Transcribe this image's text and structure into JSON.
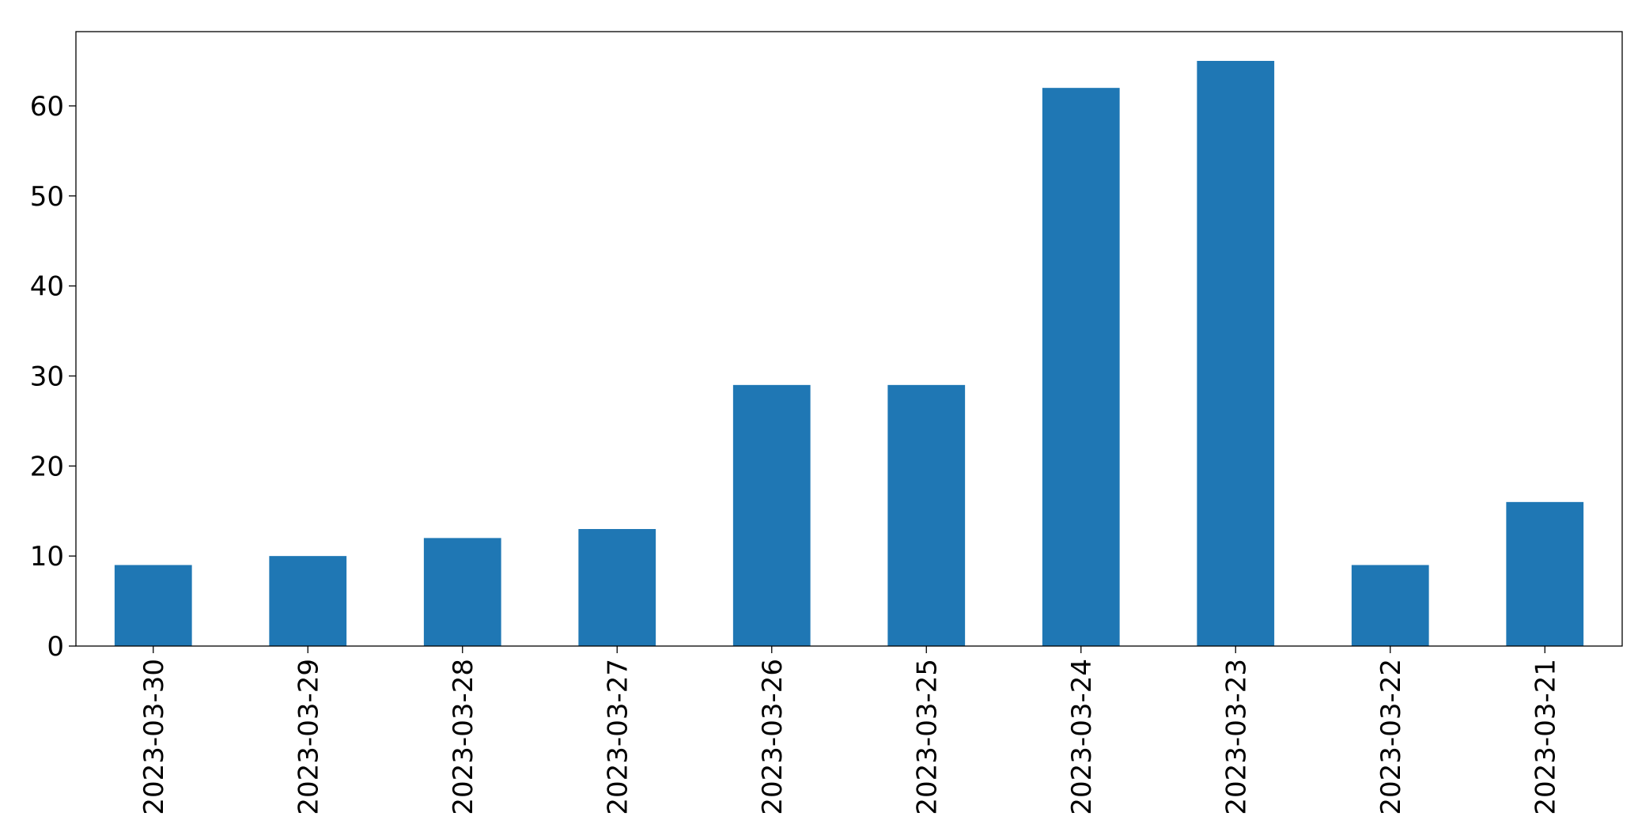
{
  "chart_data": {
    "type": "bar",
    "categories": [
      "2023-03-30",
      "2023-03-29",
      "2023-03-28",
      "2023-03-27",
      "2023-03-26",
      "2023-03-25",
      "2023-03-24",
      "2023-03-23",
      "2023-03-22",
      "2023-03-21"
    ],
    "values": [
      9,
      10,
      12,
      13,
      29,
      29,
      62,
      65,
      9,
      16
    ],
    "color": "#1f77b4",
    "ylim": [
      0,
      68.25
    ],
    "yticks": [
      0,
      10,
      20,
      30,
      40,
      50,
      60
    ],
    "grid": false
  }
}
